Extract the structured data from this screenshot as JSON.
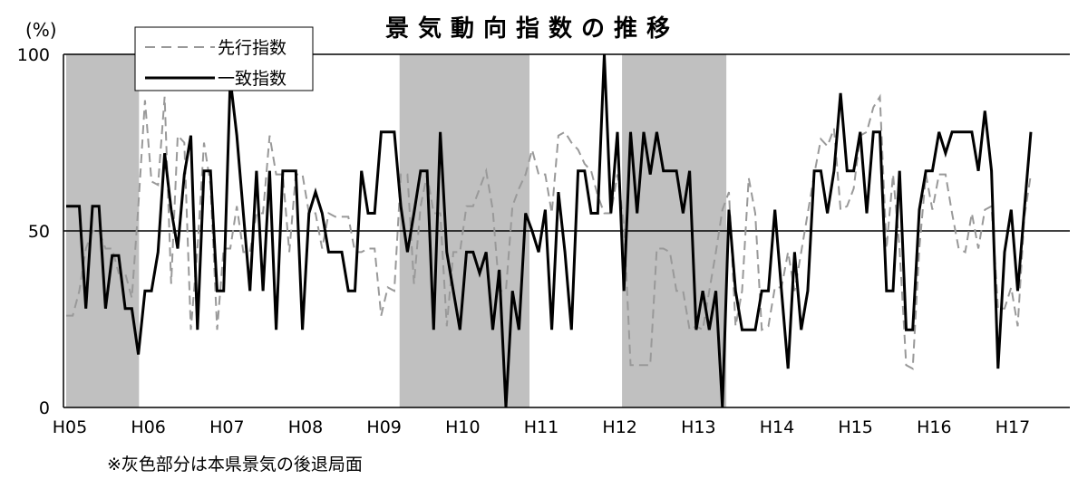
{
  "chart_data": {
    "type": "line",
    "title": "景気動向指数の推移",
    "ylabel": "(%)",
    "note": "※灰色部分は本県景気の後退局面",
    "ylim": [
      0,
      100
    ],
    "yticks": [
      "0",
      "50",
      "100"
    ],
    "gridlines": [
      50,
      100
    ],
    "categories": [
      "H05",
      "H06",
      "H07",
      "H08",
      "H09",
      "H10",
      "H11",
      "H12",
      "H13",
      "H14",
      "H15",
      "H16",
      "H17"
    ],
    "recessions": [
      {
        "from": 0,
        "to": 11.1
      },
      {
        "from": 50.8,
        "to": 70.6
      },
      {
        "from": 84.7,
        "to": 100.6
      }
    ],
    "series": [
      {
        "name": "先行指数",
        "style": "dashed",
        "color": "#999999",
        "x": [
          0,
          1,
          2,
          3,
          4,
          5,
          6,
          7,
          8,
          9,
          10,
          11,
          12,
          13,
          14,
          15,
          16,
          17,
          18,
          19,
          20,
          21,
          22,
          23,
          24,
          25,
          26,
          27,
          28,
          29,
          30,
          31,
          32,
          33,
          34,
          35,
          36,
          37,
          38,
          39,
          40,
          41,
          42,
          43,
          44,
          45,
          46,
          47,
          48,
          49,
          50,
          51,
          52,
          53,
          54,
          55,
          56,
          57,
          58,
          59,
          60,
          61,
          62,
          63,
          64,
          65,
          66,
          67,
          68,
          69,
          70,
          71,
          72,
          73,
          74,
          75,
          76,
          77,
          78,
          79,
          80,
          81,
          82,
          83,
          84,
          85,
          86,
          87,
          88,
          89,
          90,
          91,
          92,
          93,
          94,
          95,
          96,
          97,
          98,
          99,
          100,
          101,
          102,
          103,
          104,
          105,
          106,
          107,
          108,
          109,
          110,
          111,
          112,
          113,
          114,
          115,
          116,
          117,
          118,
          119,
          120,
          121,
          122,
          123,
          124,
          125,
          126,
          127,
          128,
          129,
          130,
          131,
          132,
          133,
          134,
          135,
          136,
          137,
          138,
          139,
          140,
          141,
          142,
          143,
          144,
          145,
          146,
          147
        ],
        "values": [
          26,
          26,
          33,
          45,
          50,
          50,
          45,
          45,
          38,
          38,
          31,
          57,
          87,
          64,
          63,
          88,
          35,
          77,
          75,
          22,
          45,
          75,
          63,
          22,
          45,
          45,
          57,
          44,
          44,
          55,
          55,
          77,
          66,
          66,
          44,
          66,
          66,
          55,
          55,
          45,
          55,
          54,
          54,
          54,
          44,
          44,
          45,
          45,
          26,
          34,
          33,
          66,
          66,
          35,
          57,
          66,
          55,
          55,
          23,
          44,
          44,
          57,
          57,
          62,
          67,
          56,
          33,
          33,
          57,
          62,
          66,
          73,
          66,
          66,
          55,
          77,
          78,
          75,
          73,
          69,
          67,
          60,
          55,
          55,
          66,
          52,
          12,
          12,
          12,
          12,
          45,
          45,
          44,
          33,
          33,
          22,
          23,
          22,
          33,
          44,
          56,
          61,
          23,
          33,
          65,
          55,
          22,
          23,
          34,
          34,
          44,
          33,
          44,
          55,
          66,
          76,
          74,
          79,
          56,
          57,
          62,
          77,
          78,
          85,
          88,
          45,
          66,
          45,
          12,
          11,
          45,
          66,
          56,
          66,
          66,
          55,
          45,
          44,
          55,
          45,
          56,
          57,
          28,
          28,
          34,
          23,
          54,
          66
        ],
        "segments": [
          [
            0,
            148
          ]
        ]
      },
      {
        "name": "一致指数",
        "style": "solid",
        "color": "#000000",
        "x": [
          0,
          1,
          2,
          3,
          4,
          5,
          6,
          7,
          8,
          9,
          10,
          11,
          12,
          13,
          14,
          15,
          16,
          17,
          18,
          19,
          20,
          21,
          22,
          23,
          24,
          25,
          26,
          27,
          28,
          29,
          30,
          31,
          32,
          33,
          34,
          35,
          36,
          37,
          38,
          39,
          40,
          41,
          42,
          43,
          44,
          45,
          46,
          47,
          48,
          49,
          50,
          51,
          52,
          53,
          54,
          55,
          56,
          57,
          58,
          59,
          60,
          61,
          62,
          63,
          64,
          65,
          66,
          67,
          68,
          69,
          70,
          71,
          72,
          73,
          74,
          75,
          76,
          77,
          78,
          79,
          80,
          81,
          82,
          83,
          84,
          85,
          86,
          87,
          88,
          89,
          90,
          91,
          92,
          93,
          94,
          95,
          96,
          97,
          98,
          99,
          100,
          101,
          102,
          103,
          104,
          105,
          106,
          107,
          108,
          109,
          110,
          111,
          112,
          113,
          114,
          115,
          116,
          117,
          118,
          119,
          120,
          121,
          122,
          123,
          124,
          125,
          126,
          127,
          128,
          129,
          130,
          131,
          132,
          133,
          134,
          135,
          136,
          137,
          138,
          139,
          140,
          141,
          142,
          143,
          144,
          145,
          146,
          147
        ],
        "values": [
          57,
          57,
          57,
          28,
          57,
          57,
          28,
          43,
          43,
          28,
          28,
          15,
          33,
          33,
          44,
          72,
          56,
          45,
          66,
          77,
          22,
          67,
          67,
          33,
          33,
          93,
          77,
          55,
          33,
          67,
          33,
          67,
          22,
          67,
          67,
          67,
          22,
          55,
          61,
          55,
          44,
          44,
          44,
          33,
          33,
          67,
          55,
          55,
          78,
          78,
          78,
          57,
          44,
          55,
          67,
          67,
          22,
          78,
          44,
          33,
          22,
          44,
          44,
          38,
          44,
          22,
          39,
          0,
          33,
          22,
          55,
          50,
          44,
          56,
          22,
          61,
          44,
          22,
          67,
          67,
          55,
          55,
          100,
          55,
          78,
          33,
          78,
          55,
          78,
          66,
          78,
          67,
          67,
          67,
          55,
          67,
          22,
          33,
          22,
          33,
          0,
          56,
          33,
          22,
          22,
          22,
          33,
          33,
          56,
          33,
          11,
          44,
          22,
          33,
          67,
          67,
          55,
          67,
          89,
          67,
          67,
          78,
          55,
          78,
          78,
          33,
          33,
          67,
          22,
          22,
          56,
          67,
          67,
          78,
          72,
          78,
          78,
          78,
          78,
          67,
          84,
          67,
          11,
          44,
          56,
          33,
          56,
          78
        ],
        "segments": [
          [
            0,
            148
          ]
        ]
      }
    ],
    "legend": {
      "position": "top-left",
      "entries": [
        "先行指数",
        "一致指数"
      ]
    }
  }
}
